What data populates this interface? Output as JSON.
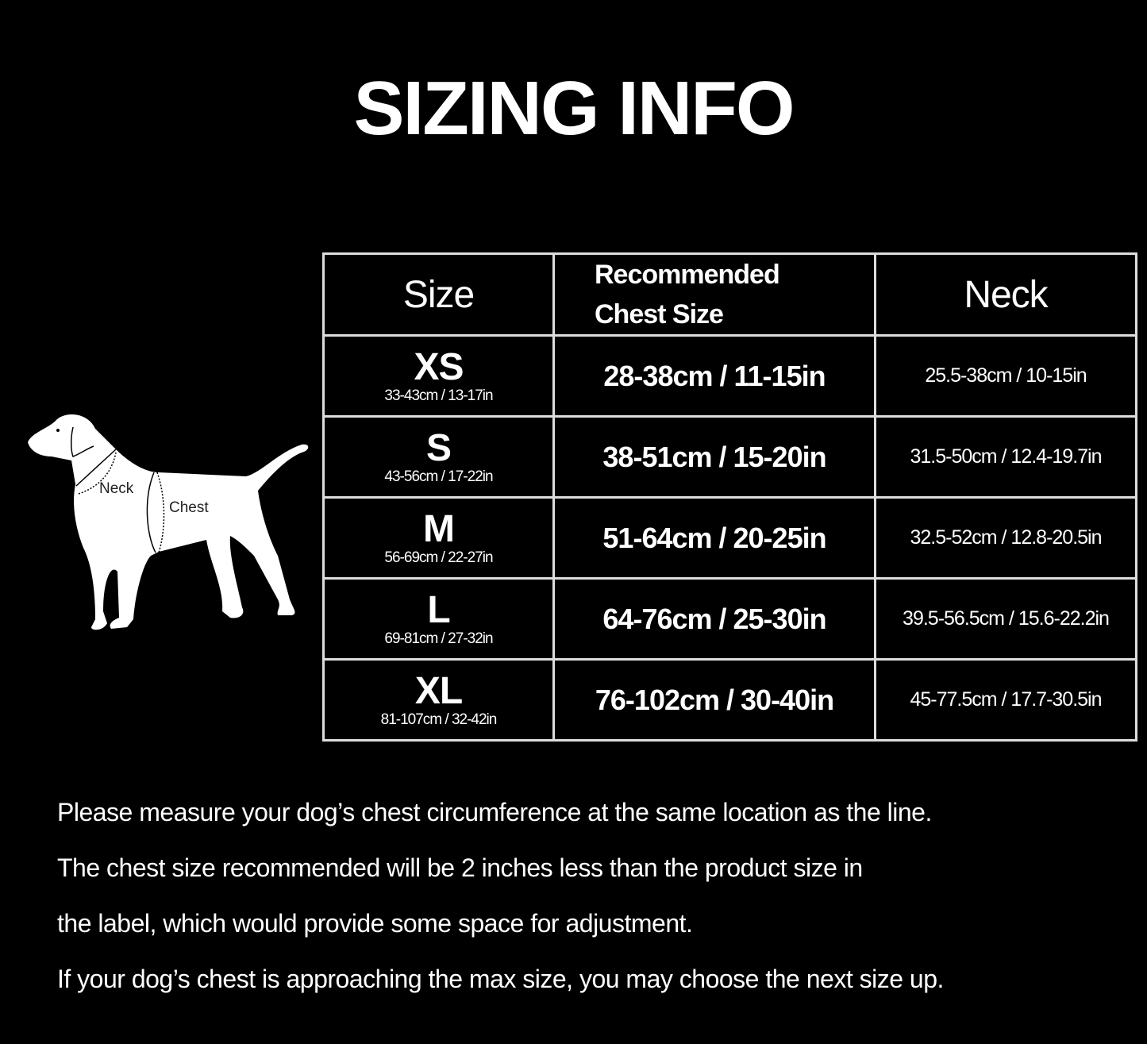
{
  "title": "SIZING INFO",
  "diagram": {
    "neck_label": "Neck",
    "chest_label": "Chest"
  },
  "table": {
    "headers": {
      "size": "Size",
      "chest_line1": "Recommended",
      "chest_line2": "Chest Size",
      "neck": "Neck"
    },
    "rows": [
      {
        "size": "XS",
        "size_range": "33-43cm / 13-17in",
        "chest": "28-38cm / 11-15in",
        "neck": "25.5-38cm / 10-15in"
      },
      {
        "size": "S",
        "size_range": "43-56cm / 17-22in",
        "chest": "38-51cm / 15-20in",
        "neck": "31.5-50cm / 12.4-19.7in"
      },
      {
        "size": "M",
        "size_range": "56-69cm / 22-27in",
        "chest": "51-64cm / 20-25in",
        "neck": "32.5-52cm / 12.8-20.5in"
      },
      {
        "size": "L",
        "size_range": "69-81cm / 27-32in",
        "chest": "64-76cm / 25-30in",
        "neck": "39.5-56.5cm / 15.6-22.2in"
      },
      {
        "size": "XL",
        "size_range": "81-107cm / 32-42in",
        "chest": "76-102cm / 30-40in",
        "neck": "45-77.5cm / 17.7-30.5in"
      }
    ]
  },
  "notes": [
    "Please measure your dog’s chest circumference at the same location as the line.",
    "The chest size recommended will be 2 inches less than the product size in",
    "the label, which would provide some space for adjustment.",
    "If your dog’s chest is approaching the max size, you may choose the next size up."
  ]
}
